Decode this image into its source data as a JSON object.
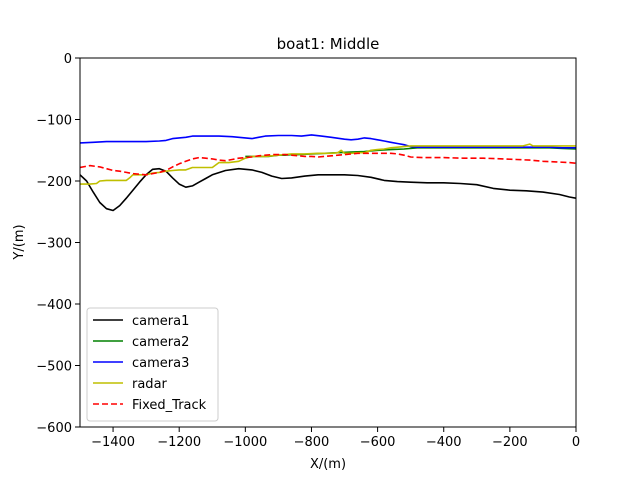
{
  "chart_data": {
    "type": "line",
    "title": "boat1: Middle",
    "xlabel": "X/(m)",
    "ylabel": "Y/(m)",
    "xlim": [
      -1500,
      0
    ],
    "ylim": [
      -600,
      0
    ],
    "xticks": [
      -1400,
      -1200,
      -1000,
      -800,
      -600,
      -400,
      -200,
      0
    ],
    "yticks": [
      0,
      -100,
      -200,
      -300,
      -400,
      -500,
      -600
    ],
    "xtick_labels": [
      "−1400",
      "−1200",
      "−1000",
      "−800",
      "−600",
      "−400",
      "−200",
      "0"
    ],
    "ytick_labels": [
      "0",
      "−100",
      "−200",
      "−300",
      "−400",
      "−500",
      "−600"
    ],
    "grid": false,
    "legend_position": "lower-left",
    "series": [
      {
        "name": "camera1",
        "color": "#000000",
        "dash": "solid",
        "points": [
          [
            -1500,
            -190
          ],
          [
            -1480,
            -200
          ],
          [
            -1460,
            -218
          ],
          [
            -1440,
            -235
          ],
          [
            -1420,
            -245
          ],
          [
            -1400,
            -248
          ],
          [
            -1380,
            -240
          ],
          [
            -1360,
            -228
          ],
          [
            -1340,
            -215
          ],
          [
            -1320,
            -202
          ],
          [
            -1300,
            -190
          ],
          [
            -1280,
            -181
          ],
          [
            -1260,
            -180
          ],
          [
            -1240,
            -184
          ],
          [
            -1220,
            -195
          ],
          [
            -1200,
            -205
          ],
          [
            -1180,
            -210
          ],
          [
            -1160,
            -208
          ],
          [
            -1140,
            -202
          ],
          [
            -1120,
            -196
          ],
          [
            -1100,
            -190
          ],
          [
            -1060,
            -183
          ],
          [
            -1020,
            -180
          ],
          [
            -980,
            -182
          ],
          [
            -950,
            -186
          ],
          [
            -920,
            -192
          ],
          [
            -890,
            -196
          ],
          [
            -860,
            -195
          ],
          [
            -820,
            -192
          ],
          [
            -780,
            -190
          ],
          [
            -740,
            -190
          ],
          [
            -700,
            -190
          ],
          [
            -660,
            -191
          ],
          [
            -620,
            -194
          ],
          [
            -580,
            -199
          ],
          [
            -540,
            -201
          ],
          [
            -500,
            -202
          ],
          [
            -450,
            -203
          ],
          [
            -400,
            -203
          ],
          [
            -350,
            -204
          ],
          [
            -300,
            -206
          ],
          [
            -250,
            -212
          ],
          [
            -200,
            -215
          ],
          [
            -150,
            -216
          ],
          [
            -100,
            -218
          ],
          [
            -50,
            -222
          ],
          [
            -20,
            -226
          ],
          [
            0,
            -228
          ]
        ]
      },
      {
        "name": "camera2",
        "color": "#008000",
        "dash": "solid",
        "points": [
          [
            -1000,
            -160
          ],
          [
            -960,
            -160
          ],
          [
            -930,
            -160
          ],
          [
            -900,
            -158
          ],
          [
            -880,
            -158
          ],
          [
            -860,
            -157
          ],
          [
            -840,
            -157
          ],
          [
            -800,
            -156
          ],
          [
            -760,
            -155
          ],
          [
            -720,
            -154
          ],
          [
            -680,
            -153
          ],
          [
            -640,
            -152
          ],
          [
            -600,
            -150
          ],
          [
            -560,
            -149
          ],
          [
            -520,
            -148
          ],
          [
            -480,
            -146
          ],
          [
            -440,
            -146
          ],
          [
            -400,
            -146
          ],
          [
            -360,
            -146
          ],
          [
            -320,
            -146
          ],
          [
            -280,
            -146
          ],
          [
            -240,
            -146
          ],
          [
            -200,
            -146
          ],
          [
            -160,
            -146
          ],
          [
            -120,
            -146
          ],
          [
            -80,
            -146
          ],
          [
            -40,
            -147
          ],
          [
            0,
            -148
          ]
        ]
      },
      {
        "name": "camera3",
        "color": "#0000ff",
        "dash": "solid",
        "points": [
          [
            -1500,
            -138
          ],
          [
            -1460,
            -137
          ],
          [
            -1420,
            -136
          ],
          [
            -1380,
            -136
          ],
          [
            -1340,
            -136
          ],
          [
            -1300,
            -136
          ],
          [
            -1260,
            -135
          ],
          [
            -1240,
            -134
          ],
          [
            -1220,
            -131
          ],
          [
            -1200,
            -130
          ],
          [
            -1180,
            -129
          ],
          [
            -1160,
            -127
          ],
          [
            -1120,
            -127
          ],
          [
            -1080,
            -127
          ],
          [
            -1040,
            -128
          ],
          [
            -1000,
            -130
          ],
          [
            -980,
            -131
          ],
          [
            -960,
            -129
          ],
          [
            -940,
            -127
          ],
          [
            -900,
            -126
          ],
          [
            -860,
            -126
          ],
          [
            -830,
            -127
          ],
          [
            -800,
            -125
          ],
          [
            -770,
            -127
          ],
          [
            -740,
            -129
          ],
          [
            -700,
            -132
          ],
          [
            -680,
            -133
          ],
          [
            -660,
            -132
          ],
          [
            -640,
            -130
          ],
          [
            -620,
            -131
          ],
          [
            -600,
            -133
          ],
          [
            -580,
            -135
          ],
          [
            -560,
            -137
          ],
          [
            -540,
            -139
          ],
          [
            -520,
            -141
          ],
          [
            -500,
            -144
          ],
          [
            -480,
            -145
          ],
          [
            -440,
            -145
          ],
          [
            -400,
            -145
          ],
          [
            -360,
            -145
          ],
          [
            -320,
            -145
          ],
          [
            -280,
            -145
          ],
          [
            -240,
            -145
          ],
          [
            -200,
            -145
          ],
          [
            -160,
            -145
          ],
          [
            -120,
            -145
          ],
          [
            -80,
            -145
          ],
          [
            -40,
            -146
          ],
          [
            0,
            -146
          ]
        ]
      },
      {
        "name": "radar",
        "color": "#bfbf00",
        "dash": "solid",
        "points": [
          [
            -1500,
            -205
          ],
          [
            -1470,
            -205
          ],
          [
            -1450,
            -204
          ],
          [
            -1440,
            -200
          ],
          [
            -1420,
            -199
          ],
          [
            -1400,
            -199
          ],
          [
            -1380,
            -199
          ],
          [
            -1360,
            -199
          ],
          [
            -1350,
            -195
          ],
          [
            -1340,
            -190
          ],
          [
            -1320,
            -190
          ],
          [
            -1300,
            -190
          ],
          [
            -1280,
            -187
          ],
          [
            -1260,
            -186
          ],
          [
            -1240,
            -184
          ],
          [
            -1220,
            -183
          ],
          [
            -1200,
            -182
          ],
          [
            -1180,
            -182
          ],
          [
            -1160,
            -178
          ],
          [
            -1140,
            -178
          ],
          [
            -1120,
            -178
          ],
          [
            -1100,
            -178
          ],
          [
            -1080,
            -170
          ],
          [
            -1050,
            -170
          ],
          [
            -1020,
            -168
          ],
          [
            -1000,
            -163
          ],
          [
            -980,
            -160
          ],
          [
            -940,
            -160
          ],
          [
            -900,
            -158
          ],
          [
            -860,
            -156
          ],
          [
            -820,
            -156
          ],
          [
            -780,
            -155
          ],
          [
            -740,
            -155
          ],
          [
            -720,
            -154
          ],
          [
            -710,
            -150
          ],
          [
            -700,
            -155
          ],
          [
            -680,
            -155
          ],
          [
            -660,
            -154
          ],
          [
            -640,
            -154
          ],
          [
            -620,
            -150
          ],
          [
            -600,
            -149
          ],
          [
            -580,
            -148
          ],
          [
            -560,
            -146
          ],
          [
            -540,
            -145
          ],
          [
            -520,
            -144
          ],
          [
            -500,
            -143
          ],
          [
            -480,
            -143
          ],
          [
            -440,
            -143
          ],
          [
            -400,
            -143
          ],
          [
            -360,
            -143
          ],
          [
            -320,
            -143
          ],
          [
            -280,
            -143
          ],
          [
            -240,
            -143
          ],
          [
            -200,
            -143
          ],
          [
            -160,
            -143
          ],
          [
            -140,
            -140
          ],
          [
            -130,
            -143
          ],
          [
            -100,
            -143
          ],
          [
            -60,
            -143
          ],
          [
            0,
            -143
          ]
        ]
      },
      {
        "name": "Fixed_Track",
        "color": "#ff0000",
        "dash": "dashed",
        "points": [
          [
            -1500,
            -178
          ],
          [
            -1470,
            -175
          ],
          [
            -1440,
            -177
          ],
          [
            -1420,
            -180
          ],
          [
            -1400,
            -183
          ],
          [
            -1380,
            -184
          ],
          [
            -1360,
            -186
          ],
          [
            -1340,
            -188
          ],
          [
            -1320,
            -189
          ],
          [
            -1300,
            -190
          ],
          [
            -1280,
            -188
          ],
          [
            -1260,
            -186
          ],
          [
            -1240,
            -183
          ],
          [
            -1220,
            -177
          ],
          [
            -1200,
            -172
          ],
          [
            -1180,
            -168
          ],
          [
            -1160,
            -164
          ],
          [
            -1140,
            -162
          ],
          [
            -1120,
            -163
          ],
          [
            -1100,
            -164
          ],
          [
            -1080,
            -166
          ],
          [
            -1060,
            -167
          ],
          [
            -1040,
            -165
          ],
          [
            -1020,
            -163
          ],
          [
            -1000,
            -162
          ],
          [
            -980,
            -161
          ],
          [
            -960,
            -159
          ],
          [
            -940,
            -158
          ],
          [
            -920,
            -157
          ],
          [
            -900,
            -157
          ],
          [
            -880,
            -157
          ],
          [
            -860,
            -158
          ],
          [
            -840,
            -159
          ],
          [
            -820,
            -160
          ],
          [
            -800,
            -160
          ],
          [
            -780,
            -161
          ],
          [
            -760,
            -160
          ],
          [
            -740,
            -159
          ],
          [
            -720,
            -158
          ],
          [
            -700,
            -157
          ],
          [
            -680,
            -156
          ],
          [
            -660,
            -155
          ],
          [
            -640,
            -155
          ],
          [
            -620,
            -155
          ],
          [
            -600,
            -155
          ],
          [
            -580,
            -155
          ],
          [
            -560,
            -155
          ],
          [
            -540,
            -156
          ],
          [
            -520,
            -158
          ],
          [
            -500,
            -161
          ],
          [
            -460,
            -162
          ],
          [
            -400,
            -162
          ],
          [
            -340,
            -163
          ],
          [
            -280,
            -163
          ],
          [
            -220,
            -164
          ],
          [
            -180,
            -165
          ],
          [
            -140,
            -166
          ],
          [
            -100,
            -168
          ],
          [
            -60,
            -169
          ],
          [
            -20,
            -170
          ],
          [
            0,
            -171
          ]
        ]
      }
    ]
  }
}
